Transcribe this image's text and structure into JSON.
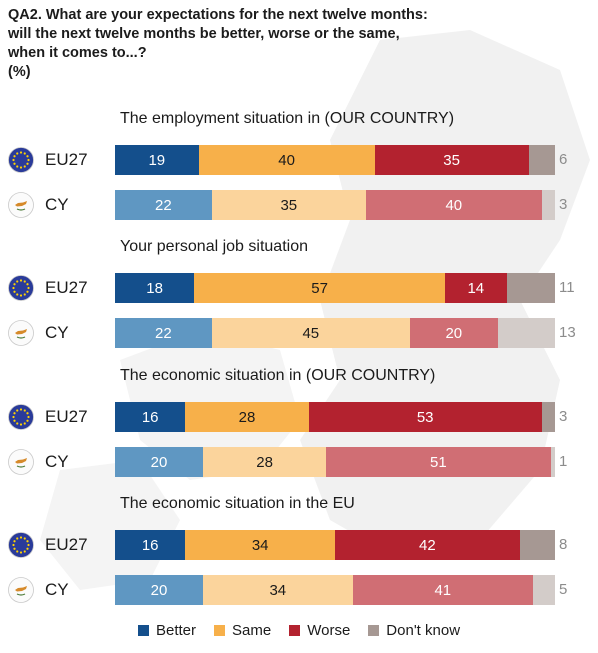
{
  "header": {
    "line1": "QA2. What are your expectations for the next twelve months:",
    "line2": "will the next twelve months be better, worse or the same,",
    "line3": "when it comes to...?",
    "line4": "(%)"
  },
  "colors": {
    "eu27": {
      "better": "#144f8c",
      "same": "#f7b04a",
      "worse": "#b3222f",
      "dontknow": "#a69893"
    },
    "cy": {
      "better": "#5f97c2",
      "same": "#fbd49c",
      "worse": "#d06e74",
      "dontknow": "#d3ccc9"
    },
    "legend": {
      "better": "#144f8c",
      "same": "#f7b04a",
      "worse": "#b3222f",
      "dontknow": "#a69893"
    }
  },
  "icons": {
    "eu27": "eu-flag-icon",
    "cy": "cyprus-flag-icon"
  },
  "chart_data": {
    "type": "bar",
    "stacked": true,
    "orientation": "horizontal",
    "series_names": [
      "Better",
      "Same",
      "Worse",
      "Don't know"
    ],
    "groups": [
      {
        "title": "The employment situation in (OUR COUNTRY)",
        "rows": [
          {
            "label": "EU27",
            "values": [
              19,
              40,
              35,
              6
            ]
          },
          {
            "label": "CY",
            "values": [
              22,
              35,
              40,
              3
            ]
          }
        ]
      },
      {
        "title": "Your personal job situation",
        "rows": [
          {
            "label": "EU27",
            "values": [
              18,
              57,
              14,
              11
            ]
          },
          {
            "label": "CY",
            "values": [
              22,
              45,
              20,
              13
            ]
          }
        ]
      },
      {
        "title": "The economic situation in (OUR COUNTRY)",
        "rows": [
          {
            "label": "EU27",
            "values": [
              16,
              28,
              53,
              3
            ]
          },
          {
            "label": "CY",
            "values": [
              20,
              28,
              51,
              1
            ]
          }
        ]
      },
      {
        "title": "The economic situation in the EU",
        "rows": [
          {
            "label": "EU27",
            "values": [
              16,
              34,
              42,
              8
            ]
          },
          {
            "label": "CY",
            "values": [
              20,
              34,
              41,
              5
            ]
          }
        ]
      }
    ],
    "legend": [
      "Better",
      "Same",
      "Worse",
      "Don't know"
    ],
    "legend_position": "bottom"
  }
}
